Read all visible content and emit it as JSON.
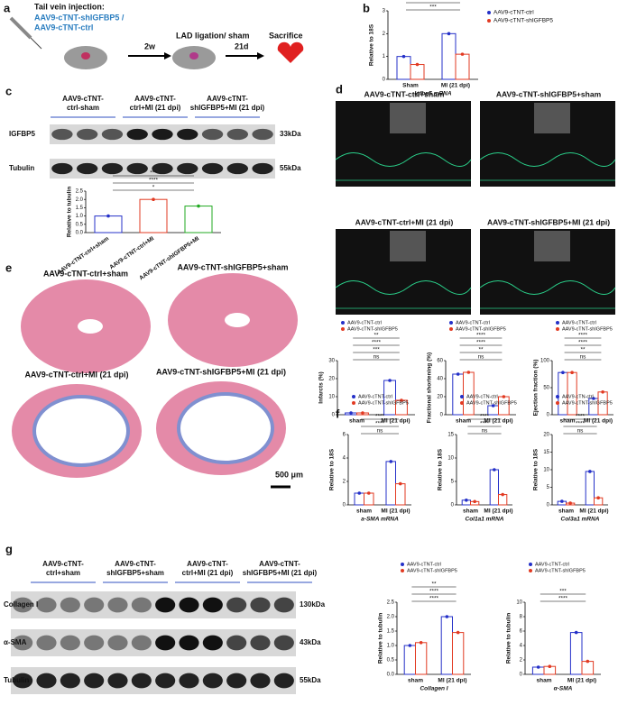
{
  "panel_labels": [
    "a",
    "b",
    "c",
    "d",
    "e",
    "f",
    "g"
  ],
  "panel_a": {
    "title": "Tail vein injection:",
    "vectors": [
      "AAV9-cTNT-shIGFBP5 /",
      "AAV9-cTNT-ctrl"
    ],
    "step1": "2w",
    "step2": "LAD ligation/ sham",
    "step3": "21d",
    "step4": "Sacrifice"
  },
  "panel_c": {
    "groups": [
      [
        "AAV9-cTNT-",
        "ctrl-sham"
      ],
      [
        "AAV9-cTNT-",
        "ctrl+MI (21 dpi)"
      ],
      [
        "AAV9-cTNT-",
        "shIGFBP5+MI (21 dpi)"
      ]
    ],
    "bands": [
      {
        "label": "IGFBP5",
        "size": "33kDa"
      },
      {
        "label": "Tubulin",
        "size": "55kDa"
      }
    ]
  },
  "panel_d": {
    "views": [
      "AAV9-cTNT-ctrl+sham",
      "AAV9-cTNT-shIGFBP5+sham",
      "AAV9-cTNT-ctrl+MI (21 dpi)",
      "AAV9-cTNT-shIGFBP5+MI (21 dpi)"
    ]
  },
  "panel_e": {
    "sections": [
      "AAV9-cTNT-ctrl+sham",
      "AAV9-cTNT-shIGFBP5+sham",
      "AAV9-cTNT-ctrl+MI (21 dpi)",
      "AAV9-cTNT-shIGFBP5+MI (21 dpi)"
    ],
    "scale_bar": "500 μm"
  },
  "panel_g": {
    "groups": [
      [
        "AAV9-cTNT-",
        "ctrl+sham"
      ],
      [
        "AAV9-cTNT-",
        "shIGFBP5+sham"
      ],
      [
        "AAV9-cTNT-",
        "ctrl+MI (21 dpi)"
      ],
      [
        "AAV9-cTNT-",
        "shIGFBP5+MI (21 dpi)"
      ]
    ],
    "bands": [
      {
        "label": "Collagen I",
        "size": "130kDa"
      },
      {
        "label": "α-SMA",
        "size": "43kDa"
      },
      {
        "label": "Tubulin",
        "size": "55kDa"
      }
    ]
  },
  "chart_data": [
    {
      "type": "bar",
      "ylabel": "Relative to 18S",
      "xlabel": "Igfbp5 mRNA",
      "categories": [
        "Sham",
        "MI (21 dpi)"
      ],
      "legend": "right",
      "series": [
        {
          "name": "AAV9-cTNT-ctrl",
          "color": "#2430c8",
          "values": [
            1.0,
            2.0
          ]
        },
        {
          "name": "AAV9-cTNT-shIGFBP5",
          "color": "#e23a22",
          "values": [
            0.65,
            1.1
          ]
        }
      ],
      "ylim": [
        0,
        3
      ],
      "yticks": [
        0,
        1,
        2,
        3
      ],
      "significance": [
        "***",
        "***"
      ]
    },
    {
      "type": "bar",
      "ylabel": "Relative to tubulin",
      "categories": [
        "AAV9-cTNT-ctrl+sham",
        "AAV9-cTNT-ctrl+MI",
        "AAV9-cTNT-shIGFBP5+MI"
      ],
      "values": [
        1.0,
        2.0,
        1.6
      ],
      "colors": [
        "#2430c8",
        "#e23a22",
        "#22aa22"
      ],
      "ylim": [
        0,
        2.5
      ],
      "yticks": [
        {
          "value": 0,
          "label": "0.0"
        },
        0.5,
        {
          "value": 1,
          "label": "1.0"
        },
        1.5,
        {
          "value": 2,
          "label": "2.0"
        },
        2.5
      ],
      "significance": [
        "*",
        "****",
        "***"
      ]
    },
    {
      "type": "bar",
      "ylabel": "Infarcts (%)",
      "categories": [
        "sham",
        "MI (21 dpi)"
      ],
      "legend": "top",
      "series": [
        {
          "name": "AAV9-cTNT-ctrl",
          "color": "#2430c8",
          "values": [
            1,
            19
          ]
        },
        {
          "name": "AAV9-cTNT-shIGFBP5",
          "color": "#e23a22",
          "values": [
            1,
            8
          ]
        }
      ],
      "ylim": [
        0,
        30
      ],
      "yticks": [
        0,
        10,
        20,
        30
      ],
      "significance": [
        "ns",
        "***",
        "****",
        "**"
      ]
    },
    {
      "type": "bar",
      "ylabel": "Fractional shortening (%)",
      "categories": [
        "sham",
        "MI (21 dpi)"
      ],
      "legend": "top",
      "series": [
        {
          "name": "AAV9-cTNT-ctrl",
          "color": "#2430c8",
          "values": [
            45,
            10
          ]
        },
        {
          "name": "AAV9-cTNT-shIGFBP5",
          "color": "#e23a22",
          "values": [
            47,
            20
          ]
        }
      ],
      "ylim": [
        0,
        60
      ],
      "yticks": [
        0,
        20,
        40,
        60
      ],
      "significance": [
        "ns",
        "**",
        "****",
        "****"
      ]
    },
    {
      "type": "bar",
      "ylabel": "Ejection fraction (%)",
      "categories": [
        "sham",
        "MI (21 dpi)"
      ],
      "legend": "top",
      "series": [
        {
          "name": "AAV9-cTNT-ctrl",
          "color": "#2430c8",
          "values": [
            78,
            30
          ]
        },
        {
          "name": "AAV9-cTNT-shIGFBP5",
          "color": "#e23a22",
          "values": [
            78,
            42
          ]
        }
      ],
      "ylim": [
        0,
        100
      ],
      "yticks": [
        0,
        50,
        100
      ],
      "significance": [
        "ns",
        "**",
        "****",
        "****"
      ]
    },
    {
      "type": "bar",
      "ylabel": "Relative to 18S",
      "xlabel": "a-SMA  mRNA",
      "categories": [
        "sham",
        "MI (21 dpi)"
      ],
      "legend": "top",
      "series": [
        {
          "name": "AAV9-cTNT-ctrl",
          "color": "#2430c8",
          "values": [
            1.0,
            3.7
          ]
        },
        {
          "name": "AAV9-cTNT-shIGFBP5",
          "color": "#e23a22",
          "values": [
            1.0,
            1.8
          ]
        }
      ],
      "ylim": [
        0,
        6
      ],
      "yticks": [
        0,
        2,
        4,
        6
      ],
      "significance": [
        "ns",
        "****",
        "****"
      ]
    },
    {
      "type": "bar",
      "ylabel": "Relative to 18S",
      "xlabel": "Col1a1  mRNA",
      "categories": [
        "sham",
        "MI (21 dpi)"
      ],
      "legend": "top",
      "series": [
        {
          "name": "AAV9-cTN-ctrl",
          "color": "#2430c8",
          "values": [
            1,
            7.5
          ]
        },
        {
          "name": "AAV9-cTNT-shIGFBP5",
          "color": "#e23a22",
          "values": [
            0.7,
            2.2
          ]
        }
      ],
      "ylim": [
        0,
        15
      ],
      "yticks": [
        0,
        5,
        10,
        15
      ],
      "significance": [
        "ns",
        "****",
        "****"
      ]
    },
    {
      "type": "bar",
      "ylabel": "Relative to 18S",
      "xlabel": "Col3a1  mRNA",
      "categories": [
        "sham",
        "MI (21 dpi)"
      ],
      "legend": "top",
      "series": [
        {
          "name": "AAV9-cTN-ctrl",
          "color": "#2430c8",
          "values": [
            1,
            9.5
          ]
        },
        {
          "name": "AAV9-cTNT-shIGFBP5",
          "color": "#e23a22",
          "values": [
            0.5,
            2
          ]
        }
      ],
      "ylim": [
        0,
        20
      ],
      "yticks": [
        0,
        5,
        10,
        15,
        20
      ],
      "significance": [
        "ns",
        "****",
        "****"
      ]
    },
    {
      "type": "bar",
      "ylabel": "Relative to tubulin",
      "xlabel": "Collagen I",
      "categories": [
        "sham",
        "MI (21 dpi)"
      ],
      "legend": "top",
      "series": [
        {
          "name": "AAV9-cTNT-ctrl",
          "color": "#2430c8",
          "values": [
            1.0,
            2.0
          ]
        },
        {
          "name": "AAV9-cTNT-shIGFBP5",
          "color": "#e23a22",
          "values": [
            1.1,
            1.45
          ]
        }
      ],
      "ylim": [
        0,
        2.5
      ],
      "yticks": [
        {
          "value": 0,
          "label": "0.0"
        },
        0.5,
        {
          "value": 1,
          "label": "1.0"
        },
        1.5,
        {
          "value": 2,
          "label": "2.0"
        },
        2.5
      ],
      "significance": [
        "****",
        "****",
        "**"
      ]
    },
    {
      "type": "bar",
      "ylabel": "Relative to tubulin",
      "xlabel": "α-SMA",
      "categories": [
        "sham",
        "MI (21 dpi)"
      ],
      "legend": "top",
      "series": [
        {
          "name": "AAV9-cTNT-ctrl",
          "color": "#2430c8",
          "values": [
            1.0,
            5.8
          ]
        },
        {
          "name": "AAV9-cTNT-shIGFBP5",
          "color": "#e23a22",
          "values": [
            1.1,
            1.8
          ]
        }
      ],
      "ylim": [
        0,
        10
      ],
      "yticks": [
        0,
        2,
        4,
        6,
        8,
        10
      ],
      "significance": [
        "****",
        "***"
      ]
    }
  ]
}
